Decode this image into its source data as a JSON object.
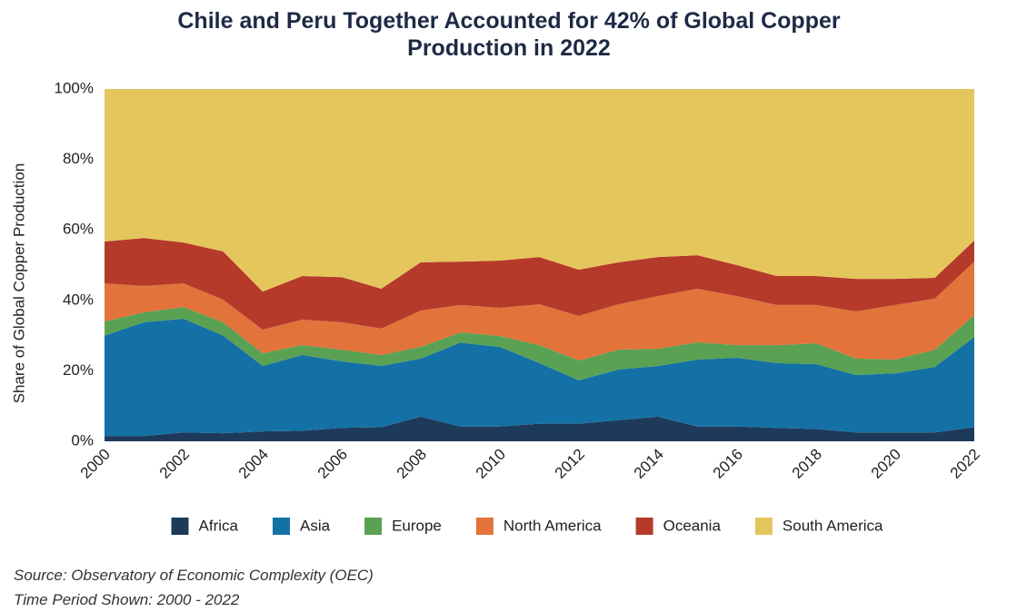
{
  "chart_data": {
    "type": "stacked_area",
    "title": "Chile and Peru Together Accounted for 42% of Global Copper Production in 2022",
    "y_label": "Share of Global Copper Production",
    "source": "Source: Observatory of Economic Complexity (OEC)",
    "time_period": "Time Period Shown: 2000 - 2022",
    "x": [
      2000,
      2001,
      2002,
      2003,
      2004,
      2005,
      2006,
      2007,
      2008,
      2009,
      2010,
      2011,
      2012,
      2013,
      2014,
      2015,
      2016,
      2017,
      2018,
      2019,
      2020,
      2021,
      2022
    ],
    "xlim": [
      2000,
      2022
    ],
    "xticks": [
      2000,
      2002,
      2004,
      2006,
      2008,
      2010,
      2012,
      2014,
      2016,
      2018,
      2020,
      2022
    ],
    "ylim": [
      0,
      100
    ],
    "yticks": [
      {
        "value": 0,
        "label": "0%"
      },
      {
        "value": 20,
        "label": "20%"
      },
      {
        "value": 40,
        "label": "40%"
      },
      {
        "value": 60,
        "label": "60%"
      },
      {
        "value": 80,
        "label": "80%"
      },
      {
        "value": 100,
        "label": "100%"
      }
    ],
    "series": [
      {
        "name": "Africa",
        "color": "#1d3a5a",
        "values": [
          1.5,
          1.5,
          2.5,
          2.3,
          2.8,
          3,
          3.8,
          4,
          7,
          4.2,
          4.2,
          5,
          5,
          6,
          7,
          4.2,
          4.2,
          3.8,
          3.5,
          2.5,
          2.5,
          2.5,
          4
        ]
      },
      {
        "name": "Asia",
        "color": "#1471a5",
        "values": [
          28.5,
          32.3,
          32.3,
          27.7,
          18.6,
          21.5,
          18.9,
          17.4,
          16.5,
          23.8,
          22.6,
          17.2,
          12.3,
          14.4,
          14.4,
          19,
          19.5,
          18.4,
          18.4,
          16.3,
          16.8,
          18.6,
          25.6
        ]
      },
      {
        "name": "Europe",
        "color": "#5aa153",
        "values": [
          4,
          2.8,
          3.3,
          3.8,
          3.6,
          2.8,
          3.3,
          3.1,
          3.3,
          2.9,
          3.1,
          5.1,
          5.6,
          5.6,
          4.9,
          4.9,
          3.6,
          5.1,
          5.9,
          4.7,
          3.9,
          4.9,
          6.2
        ]
      },
      {
        "name": "North America",
        "color": "#e2733a",
        "values": [
          10.8,
          7.5,
          6.7,
          6.4,
          6.7,
          7.2,
          7.8,
          7.5,
          10.3,
          7.8,
          8,
          11.6,
          12.7,
          12.9,
          14.9,
          15.2,
          13.9,
          11.4,
          10.9,
          13.4,
          15.5,
          14.5,
          15.2
        ]
      },
      {
        "name": "Oceania",
        "color": "#b53a2a",
        "values": [
          11.9,
          13.6,
          11.6,
          13.7,
          10.8,
          12.4,
          12.8,
          11.3,
          13.7,
          12.3,
          13.4,
          13.4,
          13.1,
          11.9,
          11.1,
          9.5,
          8.8,
          8.2,
          8.2,
          9.2,
          7.4,
          5.9,
          6
        ]
      },
      {
        "name": "South America",
        "color": "#e5c65c",
        "values": [
          43.3,
          42.3,
          43.6,
          46.1,
          57.5,
          53.1,
          53.4,
          56.7,
          49.2,
          49,
          48.7,
          47.7,
          51.3,
          49.2,
          47.7,
          47.2,
          50,
          53.1,
          53.1,
          53.9,
          53.9,
          53.6,
          43
        ]
      }
    ]
  }
}
